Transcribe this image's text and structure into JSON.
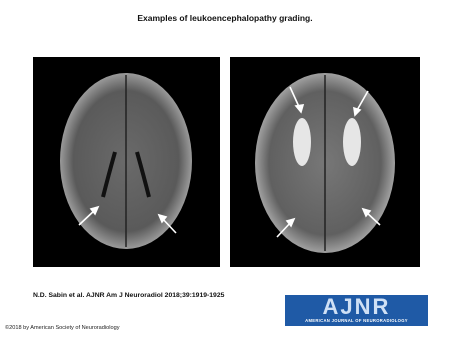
{
  "header": {
    "title": "Examples of leukoencephalopathy grading."
  },
  "citation": "N.D. Sabin et al. AJNR Am J Neuroradiol 2018;39:1919-1925",
  "logo": {
    "text": "AJNR",
    "subtitle": "AMERICAN JOURNAL OF NEURORADIOLOGY"
  },
  "copyright": "©2018 by American Society of Neuroradiology"
}
